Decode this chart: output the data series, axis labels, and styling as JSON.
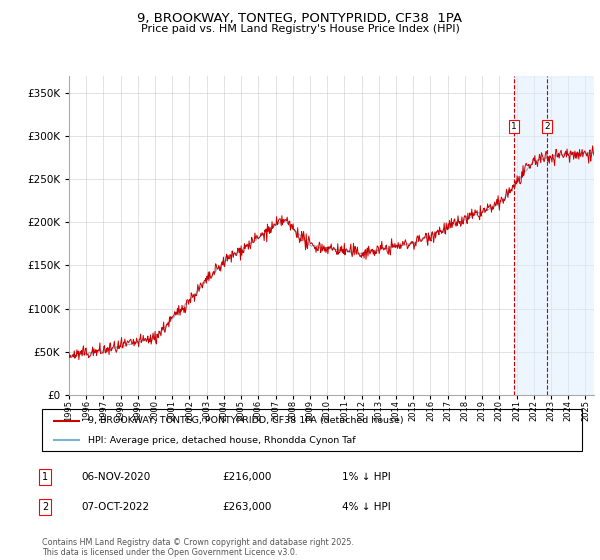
{
  "title": "9, BROOKWAY, TONTEG, PONTYPRIDD, CF38  1PA",
  "subtitle": "Price paid vs. HM Land Registry's House Price Index (HPI)",
  "hpi_line_color": "#7ab3d4",
  "price_line_color": "#cc0000",
  "background_color": "#ffffff",
  "grid_color": "#cccccc",
  "ylim": [
    0,
    370000
  ],
  "yticks": [
    0,
    50000,
    100000,
    150000,
    200000,
    250000,
    300000,
    350000
  ],
  "xlim_start": 1995,
  "xlim_end": 2025.5,
  "transaction1_date": 2020.85,
  "transaction1_price": 216000,
  "transaction1_label": "1",
  "transaction2_date": 2022.77,
  "transaction2_price": 263000,
  "transaction2_label": "2",
  "legend_line1": "9, BROOKWAY, TONTEG, PONTYPRIDD, CF38 1PA (detached house)",
  "legend_line2": "HPI: Average price, detached house, Rhondda Cynon Taf",
  "table_row1": [
    "1",
    "06-NOV-2020",
    "£216,000",
    "1% ↓ HPI"
  ],
  "table_row2": [
    "2",
    "07-OCT-2022",
    "£263,000",
    "4% ↓ HPI"
  ],
  "footnote": "Contains HM Land Registry data © Crown copyright and database right 2025.\nThis data is licensed under the Open Government Licence v3.0.",
  "shaded_color": "#ddeeff",
  "shaded_alpha": 0.5
}
